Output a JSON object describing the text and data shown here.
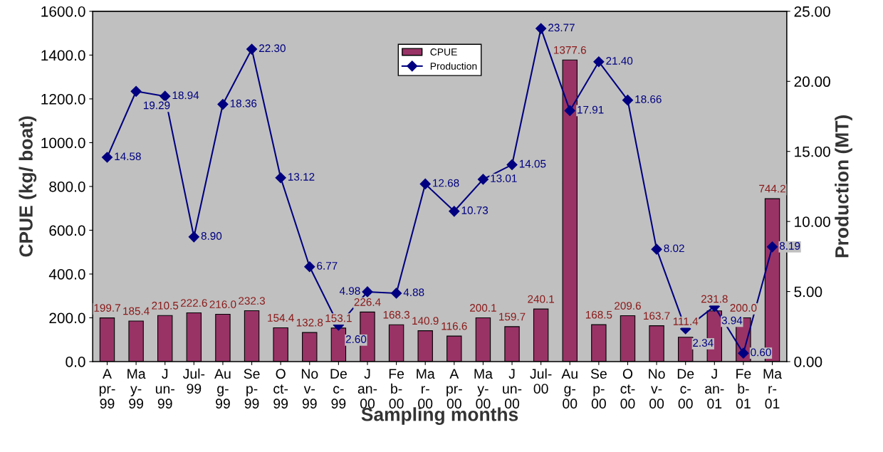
{
  "chart_data": {
    "type": "bar",
    "xlabel": "Sampling months",
    "ylabel": "CPUE (kg/ boat)",
    "y2label": "Production (MT)",
    "categories": [
      "A\npr-\n99",
      "Ma\ny-\n99",
      "J\nun-\n99",
      "Jul-\n99",
      "Au\ng-\n99",
      "Se\np-\n99",
      "O\nct-\n99",
      "No\nv-\n99",
      "De\nc-\n99",
      "J\nan-\n00",
      "Fe\nb-\n00",
      "Ma\nr-\n00",
      "A\npr-\n00",
      "Ma\ny-\n00",
      "J\nun-\n00",
      "Jul-\n00",
      "Au\ng-\n00",
      "Se\np-\n00",
      "O\nct-\n00",
      "No\nv-\n00",
      "De\nc-\n00",
      "J\nan-\n01",
      "Fe\nb-\n01",
      "Ma\nr-\n01"
    ],
    "series": [
      {
        "name": "CPUE",
        "color": "#993366",
        "values": [
          199.7,
          185.4,
          210.5,
          222.6,
          216.0,
          232.3,
          154.4,
          132.8,
          153.1,
          226.4,
          168.3,
          140.9,
          116.6,
          200.1,
          159.7,
          240.1,
          1377.6,
          168.5,
          209.6,
          163.7,
          111.4,
          231.8,
          200.0,
          744.2
        ],
        "value_labels": [
          "199.7",
          "185.4",
          "210.5",
          "222.6",
          "216.0",
          "232.3",
          "154.4",
          "132.8",
          "153.1",
          "226.4",
          "168.3",
          "140.9",
          "116.6",
          "200.1",
          "159.7",
          "240.1",
          "1377.6",
          "168.5",
          "209.6",
          "163.7",
          "111.4",
          "231.8",
          "200.0",
          "744.2"
        ]
      },
      {
        "name": "Production",
        "type": "line",
        "axis": "y2",
        "color": "#000080",
        "marker": "diamond",
        "values": [
          14.58,
          19.29,
          18.94,
          8.9,
          18.36,
          22.3,
          13.12,
          6.77,
          2.6,
          4.98,
          4.88,
          12.68,
          10.73,
          13.01,
          14.05,
          23.77,
          17.91,
          21.4,
          18.66,
          8.02,
          2.34,
          3.94,
          0.6,
          8.19
        ],
        "value_labels": [
          "14.58",
          "19.29",
          "18.94",
          "8.90",
          "18.36",
          "22.30",
          "13.12",
          "6.77",
          "2.60",
          "4.98",
          "4.88",
          "12.68",
          "10.73",
          "13.01",
          "14.05",
          "23.77",
          "17.91",
          "21.40",
          "18.66",
          "8.02",
          "2.34",
          "3.94",
          "0.60",
          "8.19"
        ]
      }
    ],
    "ylim": [
      0,
      1600
    ],
    "yticks": [
      {
        "value": 0,
        "label": "0.0"
      },
      {
        "value": 200,
        "label": "200.0"
      },
      {
        "value": 400,
        "label": "400.0"
      },
      {
        "value": 600,
        "label": "600.0"
      },
      {
        "value": 800,
        "label": "800.0"
      },
      {
        "value": 1000,
        "label": "1000.0"
      },
      {
        "value": 1200,
        "label": "1200.0"
      },
      {
        "value": 1400,
        "label": "1400.0"
      },
      {
        "value": 1600,
        "label": "1600.0"
      }
    ],
    "y2lim": [
      0,
      25
    ],
    "y2ticks": [
      {
        "value": 0,
        "label": "0.00"
      },
      {
        "value": 5,
        "label": "5.00"
      },
      {
        "value": 10,
        "label": "10.00"
      },
      {
        "value": 15,
        "label": "15.00"
      },
      {
        "value": 20,
        "label": "20.00"
      },
      {
        "value": 25,
        "label": "25.00"
      }
    ],
    "grid": false,
    "legend": "top"
  }
}
